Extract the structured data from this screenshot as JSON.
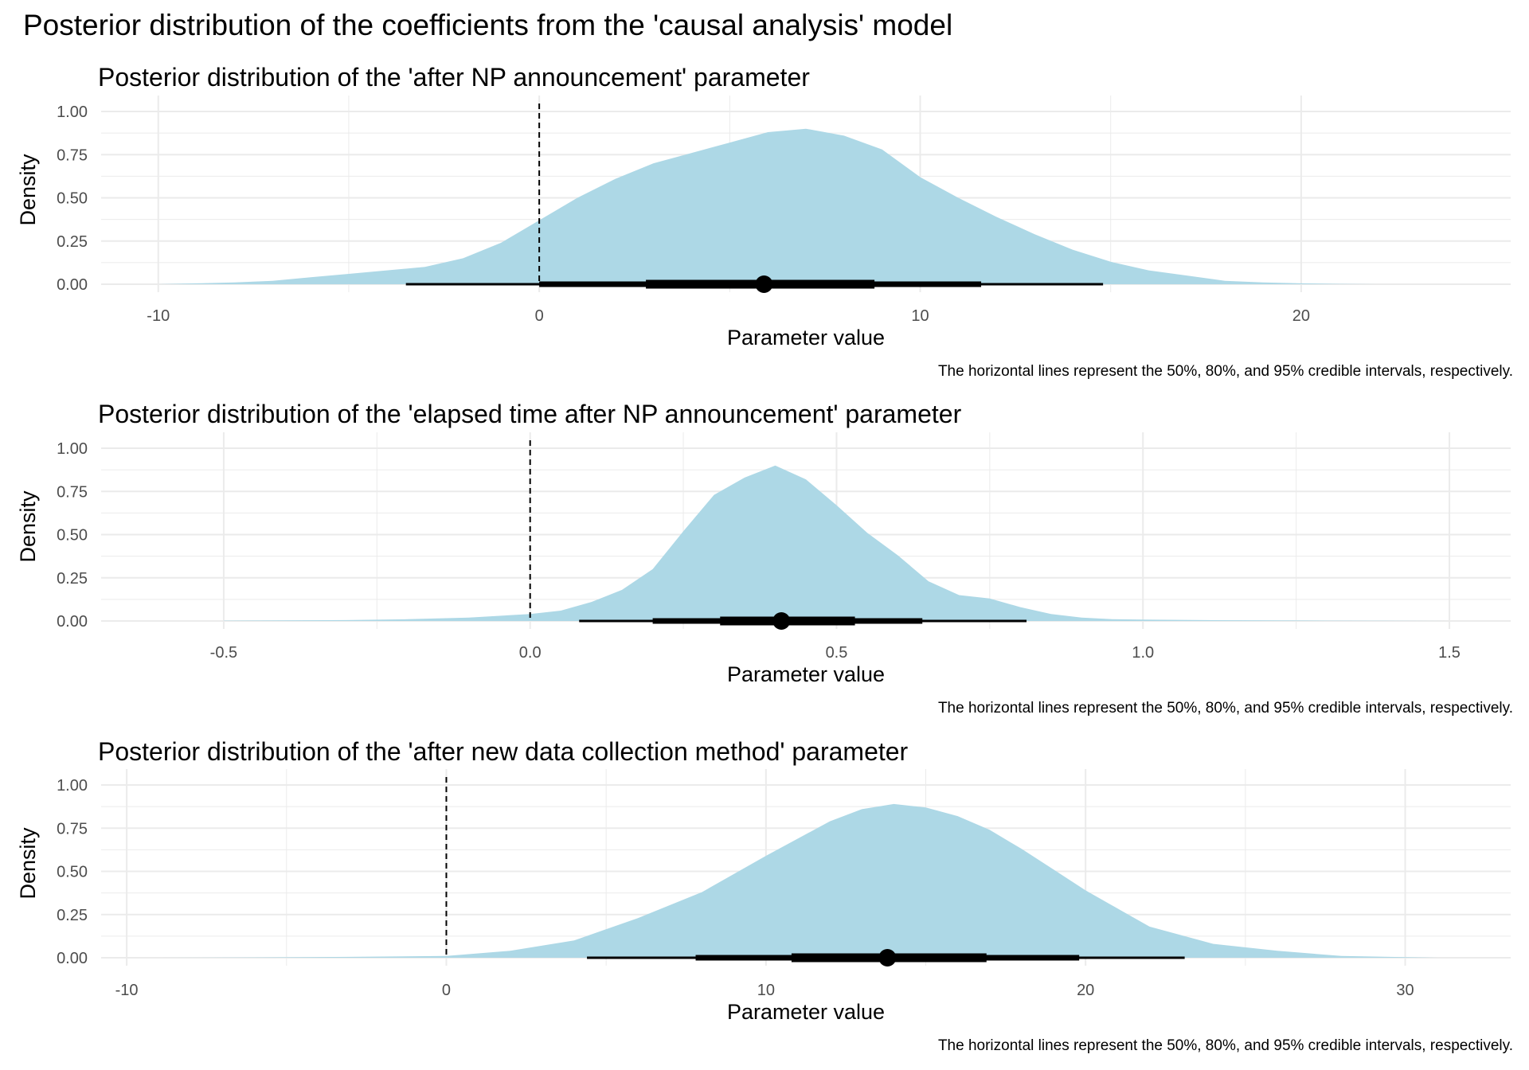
{
  "main_title": "Posterior distribution of the coefficients from the 'causal analysis' model",
  "colors": {
    "density_fill": "#ADD8E6",
    "interval": "#000000",
    "gridline": "#EBEBEB",
    "zero_line": "#000000",
    "axis_text": "#4D4D4D"
  },
  "chart_data": [
    {
      "type": "area",
      "title": "Posterior distribution of the 'after NP announcement' parameter",
      "xlabel": "Parameter value",
      "ylabel": "Density",
      "caption": "The horizontal lines represent the 50%, 80%, and 95% credible intervals, respectively.",
      "xlim": [
        -11.5,
        25.5
      ],
      "ylim": [
        0,
        1
      ],
      "xticks": [
        -10,
        0,
        10,
        20
      ],
      "xtick_labels": [
        "-10",
        "0",
        "10",
        "20"
      ],
      "yticks": [
        0,
        0.25,
        0.5,
        0.75,
        1
      ],
      "ytick_labels": [
        "0.00",
        "0.25",
        "0.50",
        "0.75",
        "1.00"
      ],
      "zero_line": 0,
      "grid": true,
      "density": {
        "x": [
          -10,
          -9,
          -8,
          -7,
          -6,
          -5,
          -4,
          -3,
          -2,
          -1,
          0,
          1,
          2,
          3,
          4,
          5,
          6,
          7,
          8,
          9,
          10,
          11,
          12,
          13,
          14,
          15,
          16,
          17,
          18,
          19,
          20,
          21,
          22
        ],
        "y": [
          0.0,
          0.005,
          0.01,
          0.02,
          0.04,
          0.06,
          0.08,
          0.1,
          0.15,
          0.24,
          0.37,
          0.5,
          0.61,
          0.7,
          0.76,
          0.82,
          0.88,
          0.9,
          0.86,
          0.78,
          0.62,
          0.5,
          0.39,
          0.29,
          0.2,
          0.13,
          0.08,
          0.05,
          0.02,
          0.01,
          0.005,
          0.002,
          0.0
        ]
      },
      "point_estimate": 5.9,
      "intervals": [
        {
          "level": "50%",
          "low": 2.8,
          "high": 8.8
        },
        {
          "level": "80%",
          "low": 0.0,
          "high": 11.6
        },
        {
          "level": "95%",
          "low": -3.5,
          "high": 14.8
        }
      ]
    },
    {
      "type": "area",
      "title": "Posterior distribution of the 'elapsed time after NP announcement' parameter",
      "xlabel": "Parameter value",
      "ylabel": "Density",
      "caption": "The horizontal lines represent the 50%, 80%, and 95% credible intervals, respectively.",
      "xlim": [
        -0.7,
        1.6
      ],
      "ylim": [
        0,
        1
      ],
      "xticks": [
        -0.5,
        0,
        0.5,
        1,
        1.5
      ],
      "xtick_labels": [
        "-0.5",
        "0.0",
        "0.5",
        "1.0",
        "1.5"
      ],
      "yticks": [
        0,
        0.25,
        0.5,
        0.75,
        1
      ],
      "ytick_labels": [
        "0.00",
        "0.25",
        "0.50",
        "0.75",
        "1.00"
      ],
      "zero_line": 0,
      "grid": true,
      "density": {
        "x": [
          -0.5,
          -0.4,
          -0.3,
          -0.2,
          -0.1,
          0.0,
          0.05,
          0.1,
          0.15,
          0.2,
          0.25,
          0.3,
          0.35,
          0.4,
          0.45,
          0.5,
          0.55,
          0.6,
          0.65,
          0.7,
          0.75,
          0.8,
          0.85,
          0.9,
          0.95,
          1.0,
          1.1,
          1.2,
          1.3,
          1.4,
          1.5
        ],
        "y": [
          0.002,
          0.003,
          0.005,
          0.01,
          0.02,
          0.04,
          0.06,
          0.11,
          0.18,
          0.3,
          0.52,
          0.73,
          0.83,
          0.9,
          0.82,
          0.67,
          0.51,
          0.38,
          0.23,
          0.15,
          0.13,
          0.08,
          0.04,
          0.02,
          0.01,
          0.008,
          0.005,
          0.003,
          0.002,
          0.001,
          0.0
        ]
      },
      "point_estimate": 0.41,
      "intervals": [
        {
          "level": "50%",
          "low": 0.31,
          "high": 0.53
        },
        {
          "level": "80%",
          "low": 0.2,
          "high": 0.64
        },
        {
          "level": "95%",
          "low": 0.08,
          "high": 0.81
        }
      ]
    },
    {
      "type": "area",
      "title": "Posterior distribution of the 'after new data collection method' parameter",
      "xlabel": "Parameter value",
      "ylabel": "Density",
      "caption": "The horizontal lines represent the 50%, 80%, and 95% credible intervals, respectively.",
      "xlim": [
        -10.8,
        33.3
      ],
      "ylim": [
        0,
        1
      ],
      "xticks": [
        -10,
        0,
        10,
        20,
        30
      ],
      "xtick_labels": [
        "-10",
        "0",
        "10",
        "20",
        "30"
      ],
      "yticks": [
        0,
        0.25,
        0.5,
        0.75,
        1
      ],
      "ytick_labels": [
        "0.00",
        "0.25",
        "0.50",
        "0.75",
        "1.00"
      ],
      "zero_line": 0,
      "grid": true,
      "density": {
        "x": [
          -9,
          -6,
          -3,
          0,
          2,
          4,
          6,
          8,
          10,
          11,
          12,
          13,
          14,
          15,
          16,
          17,
          18,
          19,
          20,
          22,
          24,
          26,
          28,
          30,
          31
        ],
        "y": [
          0.0,
          0.002,
          0.005,
          0.01,
          0.04,
          0.1,
          0.23,
          0.38,
          0.59,
          0.69,
          0.79,
          0.86,
          0.89,
          0.87,
          0.82,
          0.74,
          0.63,
          0.51,
          0.39,
          0.18,
          0.08,
          0.04,
          0.01,
          0.003,
          0.0
        ]
      },
      "point_estimate": 13.8,
      "intervals": [
        {
          "level": "50%",
          "low": 10.8,
          "high": 16.9
        },
        {
          "level": "80%",
          "low": 7.8,
          "high": 19.8
        },
        {
          "level": "95%",
          "low": 4.4,
          "high": 23.1
        }
      ]
    }
  ]
}
